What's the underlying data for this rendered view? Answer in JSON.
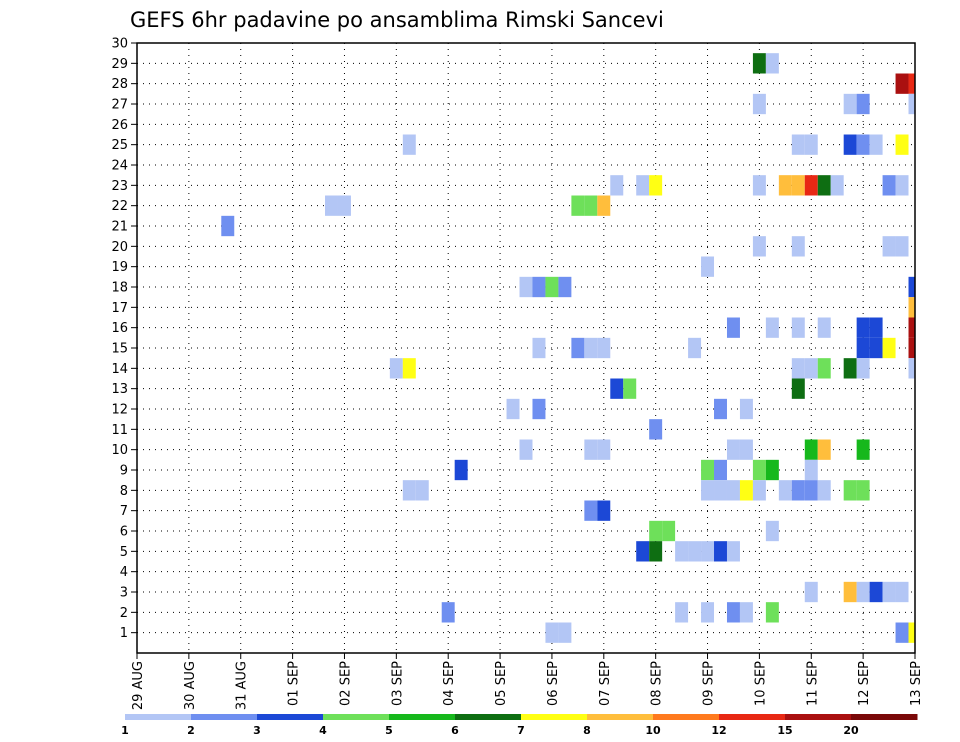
{
  "chart_data": {
    "type": "heatmap",
    "title": "GEFS 6hr padavine po ansamblima Rimski Sancevi",
    "xlabel": "",
    "ylabel": "",
    "x_ticks": [
      "29 AUG",
      "30 AUG",
      "31 AUG",
      "01 SEP",
      "02 SEP",
      "03 SEP",
      "04 SEP",
      "05 SEP",
      "06 SEP",
      "07 SEP",
      "08 SEP",
      "09 SEP",
      "10 SEP",
      "11 SEP",
      "12 SEP",
      "13 SEP"
    ],
    "x_range_days": [
      0,
      15
    ],
    "time_step_hours": 6,
    "y_ticks": [
      1,
      2,
      3,
      4,
      5,
      6,
      7,
      8,
      9,
      10,
      11,
      12,
      13,
      14,
      15,
      16,
      17,
      18,
      19,
      20,
      21,
      22,
      23,
      24,
      25,
      26,
      27,
      28,
      29,
      30
    ],
    "y_range": [
      0,
      30
    ],
    "grid": true,
    "legend": {
      "placement": "bottom",
      "labels": [
        "1",
        "2",
        "3",
        "4",
        "5",
        "6",
        "7",
        "8",
        "10",
        "12",
        "15",
        "20"
      ],
      "colors": [
        "#b3c6f5",
        "#6f8ff0",
        "#1c48d6",
        "#6ee05a",
        "#16b81c",
        "#0e6e12",
        "#ffff14",
        "#ffbe3c",
        "#ff7a1e",
        "#e82814",
        "#aa1010",
        "#7a0808"
      ]
    },
    "cells": [
      {
        "t": 12.0,
        "m": 29,
        "v": 6
      },
      {
        "t": 12.25,
        "m": 29,
        "v": 1
      },
      {
        "t": 14.75,
        "m": 28,
        "v": 15
      },
      {
        "t": 15.0,
        "m": 28,
        "v": 12
      },
      {
        "t": 12.0,
        "m": 27,
        "v": 1
      },
      {
        "t": 13.75,
        "m": 27,
        "v": 1
      },
      {
        "t": 14.0,
        "m": 27,
        "v": 2
      },
      {
        "t": 15.0,
        "m": 27,
        "v": 1
      },
      {
        "t": 5.25,
        "m": 25,
        "v": 1
      },
      {
        "t": 12.75,
        "m": 25,
        "v": 1
      },
      {
        "t": 13.0,
        "m": 25,
        "v": 1
      },
      {
        "t": 13.75,
        "m": 25,
        "v": 3
      },
      {
        "t": 14.0,
        "m": 25,
        "v": 2
      },
      {
        "t": 14.25,
        "m": 25,
        "v": 1
      },
      {
        "t": 14.75,
        "m": 25,
        "v": 7
      },
      {
        "t": 9.25,
        "m": 23,
        "v": 1
      },
      {
        "t": 9.75,
        "m": 23,
        "v": 1
      },
      {
        "t": 10.0,
        "m": 23,
        "v": 7
      },
      {
        "t": 12.0,
        "m": 23,
        "v": 1
      },
      {
        "t": 12.5,
        "m": 23,
        "v": 8
      },
      {
        "t": 12.75,
        "m": 23,
        "v": 8
      },
      {
        "t": 13.0,
        "m": 23,
        "v": 12
      },
      {
        "t": 13.25,
        "m": 23,
        "v": 6
      },
      {
        "t": 13.5,
        "m": 23,
        "v": 1
      },
      {
        "t": 14.5,
        "m": 23,
        "v": 2
      },
      {
        "t": 14.75,
        "m": 23,
        "v": 1
      },
      {
        "t": 3.75,
        "m": 22,
        "v": 1
      },
      {
        "t": 4.0,
        "m": 22,
        "v": 1
      },
      {
        "t": 8.5,
        "m": 22,
        "v": 4
      },
      {
        "t": 8.75,
        "m": 22,
        "v": 4
      },
      {
        "t": 9.0,
        "m": 22,
        "v": 8
      },
      {
        "t": 1.75,
        "m": 21,
        "v": 2
      },
      {
        "t": 14.5,
        "m": 20,
        "v": 1
      },
      {
        "t": 14.75,
        "m": 20,
        "v": 1
      },
      {
        "t": 12.0,
        "m": 20,
        "v": 1
      },
      {
        "t": 12.75,
        "m": 20,
        "v": 1
      },
      {
        "t": 11.0,
        "m": 19,
        "v": 1
      },
      {
        "t": 7.5,
        "m": 18,
        "v": 1
      },
      {
        "t": 7.75,
        "m": 18,
        "v": 2
      },
      {
        "t": 8.0,
        "m": 18,
        "v": 4
      },
      {
        "t": 8.25,
        "m": 18,
        "v": 2
      },
      {
        "t": 15.0,
        "m": 18,
        "v": 3
      },
      {
        "t": 15.0,
        "m": 17,
        "v": 8
      },
      {
        "t": 11.5,
        "m": 16,
        "v": 2
      },
      {
        "t": 12.25,
        "m": 16,
        "v": 1
      },
      {
        "t": 12.75,
        "m": 16,
        "v": 1
      },
      {
        "t": 13.25,
        "m": 16,
        "v": 1
      },
      {
        "t": 7.75,
        "m": 15,
        "v": 1
      },
      {
        "t": 8.5,
        "m": 15,
        "v": 2
      },
      {
        "t": 8.75,
        "m": 15,
        "v": 1
      },
      {
        "t": 9.0,
        "m": 15,
        "v": 1
      },
      {
        "t": 10.75,
        "m": 15,
        "v": 1
      },
      {
        "t": 14.0,
        "m": 16,
        "v": 3
      },
      {
        "t": 14.25,
        "m": 16,
        "v": 3
      },
      {
        "t": 14.0,
        "m": 15,
        "v": 3
      },
      {
        "t": 14.25,
        "m": 15,
        "v": 3
      },
      {
        "t": 14.5,
        "m": 15,
        "v": 7
      },
      {
        "t": 15.0,
        "m": 16,
        "v": 15
      },
      {
        "t": 15.0,
        "m": 15,
        "v": 15
      },
      {
        "t": 5.0,
        "m": 14,
        "v": 1
      },
      {
        "t": 5.25,
        "m": 14,
        "v": 7
      },
      {
        "t": 12.75,
        "m": 14,
        "v": 1
      },
      {
        "t": 13.0,
        "m": 14,
        "v": 1
      },
      {
        "t": 13.25,
        "m": 14,
        "v": 4
      },
      {
        "t": 13.75,
        "m": 14,
        "v": 6
      },
      {
        "t": 14.0,
        "m": 14,
        "v": 1
      },
      {
        "t": 15.0,
        "m": 14,
        "v": 1
      },
      {
        "t": 9.25,
        "m": 13,
        "v": 3
      },
      {
        "t": 9.5,
        "m": 13,
        "v": 4
      },
      {
        "t": 12.75,
        "m": 13,
        "v": 6
      },
      {
        "t": 7.25,
        "m": 12,
        "v": 1
      },
      {
        "t": 7.75,
        "m": 12,
        "v": 2
      },
      {
        "t": 11.25,
        "m": 12,
        "v": 2
      },
      {
        "t": 11.75,
        "m": 12,
        "v": 1
      },
      {
        "t": 10.0,
        "m": 11,
        "v": 2
      },
      {
        "t": 7.5,
        "m": 10,
        "v": 1
      },
      {
        "t": 9.0,
        "m": 10,
        "v": 1
      },
      {
        "t": 8.75,
        "m": 10,
        "v": 1
      },
      {
        "t": 11.5,
        "m": 10,
        "v": 1
      },
      {
        "t": 11.75,
        "m": 10,
        "v": 1
      },
      {
        "t": 13.0,
        "m": 10,
        "v": 5
      },
      {
        "t": 13.25,
        "m": 10,
        "v": 8
      },
      {
        "t": 14.0,
        "m": 10,
        "v": 5
      },
      {
        "t": 6.25,
        "m": 9,
        "v": 3
      },
      {
        "t": 11.0,
        "m": 9,
        "v": 4
      },
      {
        "t": 11.25,
        "m": 9,
        "v": 2
      },
      {
        "t": 12.0,
        "m": 9,
        "v": 4
      },
      {
        "t": 12.25,
        "m": 9,
        "v": 5
      },
      {
        "t": 13.0,
        "m": 9,
        "v": 1
      },
      {
        "t": 5.25,
        "m": 8,
        "v": 1
      },
      {
        "t": 5.5,
        "m": 8,
        "v": 1
      },
      {
        "t": 11.0,
        "m": 8,
        "v": 1
      },
      {
        "t": 11.25,
        "m": 8,
        "v": 1
      },
      {
        "t": 11.5,
        "m": 8,
        "v": 1
      },
      {
        "t": 11.75,
        "m": 8,
        "v": 7
      },
      {
        "t": 12.0,
        "m": 8,
        "v": 1
      },
      {
        "t": 12.5,
        "m": 8,
        "v": 1
      },
      {
        "t": 12.75,
        "m": 8,
        "v": 2
      },
      {
        "t": 13.0,
        "m": 8,
        "v": 2
      },
      {
        "t": 13.25,
        "m": 8,
        "v": 1
      },
      {
        "t": 13.75,
        "m": 8,
        "v": 4
      },
      {
        "t": 14.0,
        "m": 8,
        "v": 4
      },
      {
        "t": 8.75,
        "m": 7,
        "v": 2
      },
      {
        "t": 9.0,
        "m": 7,
        "v": 3
      },
      {
        "t": 10.0,
        "m": 6,
        "v": 4
      },
      {
        "t": 10.25,
        "m": 6,
        "v": 4
      },
      {
        "t": 12.25,
        "m": 6,
        "v": 1
      },
      {
        "t": 9.75,
        "m": 5,
        "v": 3
      },
      {
        "t": 10.0,
        "m": 5,
        "v": 6
      },
      {
        "t": 10.5,
        "m": 5,
        "v": 1
      },
      {
        "t": 10.75,
        "m": 5,
        "v": 1
      },
      {
        "t": 11.0,
        "m": 5,
        "v": 1
      },
      {
        "t": 11.25,
        "m": 5,
        "v": 3
      },
      {
        "t": 11.5,
        "m": 5,
        "v": 1
      },
      {
        "t": 13.0,
        "m": 3,
        "v": 1
      },
      {
        "t": 13.75,
        "m": 3,
        "v": 8
      },
      {
        "t": 14.0,
        "m": 3,
        "v": 1
      },
      {
        "t": 14.25,
        "m": 3,
        "v": 3
      },
      {
        "t": 14.5,
        "m": 3,
        "v": 1
      },
      {
        "t": 14.75,
        "m": 3,
        "v": 1
      },
      {
        "t": 6.0,
        "m": 2,
        "v": 2
      },
      {
        "t": 10.5,
        "m": 2,
        "v": 1
      },
      {
        "t": 11.0,
        "m": 2,
        "v": 1
      },
      {
        "t": 11.5,
        "m": 2,
        "v": 2
      },
      {
        "t": 11.75,
        "m": 2,
        "v": 1
      },
      {
        "t": 12.25,
        "m": 2,
        "v": 4
      },
      {
        "t": 8.0,
        "m": 1,
        "v": 1
      },
      {
        "t": 8.25,
        "m": 1,
        "v": 1
      },
      {
        "t": 14.75,
        "m": 1,
        "v": 2
      },
      {
        "t": 15.0,
        "m": 1,
        "v": 7
      }
    ]
  }
}
